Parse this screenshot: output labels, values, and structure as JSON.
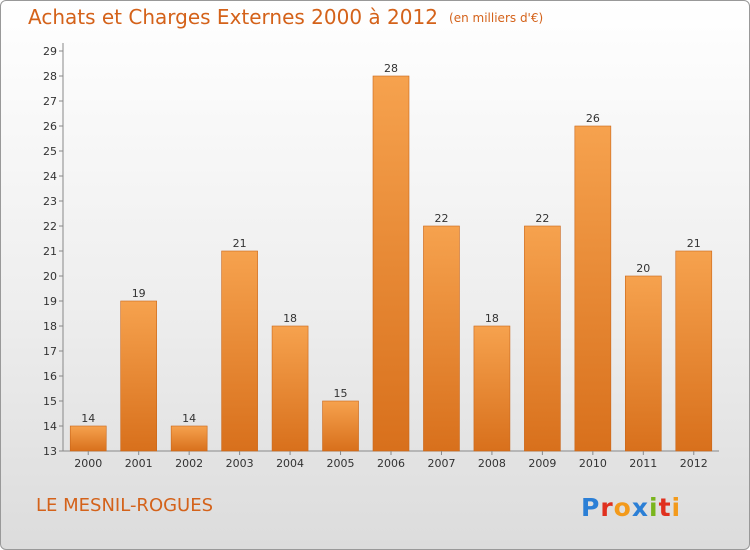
{
  "title": {
    "main": "Achats et Charges Externes 2000 à 2012",
    "unit": "(en milliers d'€)"
  },
  "commune": "LE MESNIL-ROGUES",
  "logo": {
    "text": "Proxiti",
    "colors": [
      "#2b7fd6",
      "#e0301e",
      "#f39a1b",
      "#2b7fd6",
      "#7ab51d",
      "#e0301e",
      "#f39a1b"
    ]
  },
  "colors": {
    "bar_light": "#f6a24e",
    "bar_dark": "#d8701c",
    "title": "#d4621a"
  },
  "chart_data": {
    "type": "bar",
    "categories": [
      "2000",
      "2001",
      "2002",
      "2003",
      "2004",
      "2005",
      "2006",
      "2007",
      "2008",
      "2009",
      "2010",
      "2011",
      "2012"
    ],
    "values": [
      14,
      19,
      14,
      21,
      18,
      15,
      28,
      22,
      18,
      22,
      26,
      20,
      21
    ],
    "title": "Achats et Charges Externes 2000 à 2012",
    "ylim": [
      13,
      29
    ],
    "yticks": [
      13,
      14,
      15,
      16,
      17,
      18,
      19,
      20,
      21,
      22,
      23,
      24,
      25,
      26,
      27,
      28,
      29
    ],
    "grid": false
  }
}
